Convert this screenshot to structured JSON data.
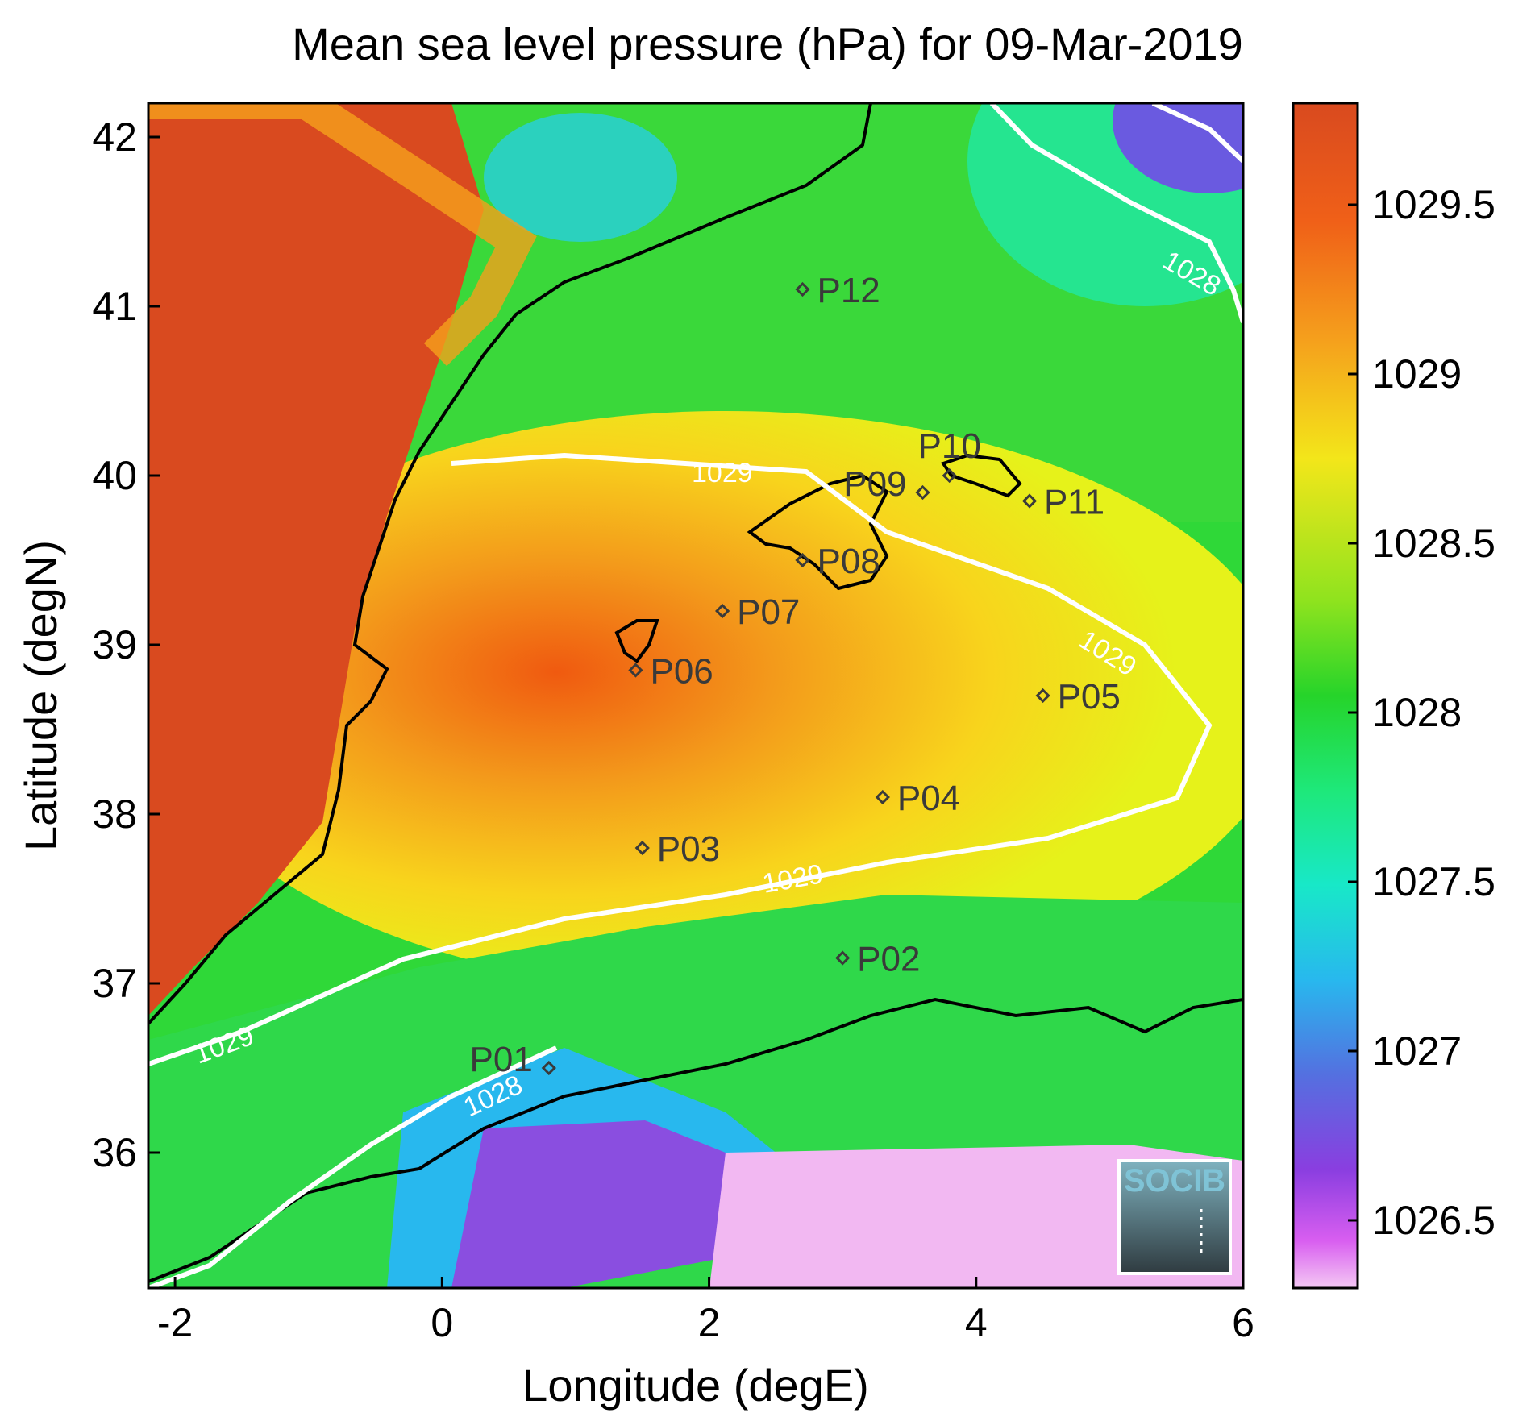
{
  "title": "Mean sea level pressure (hPa) for 09-Mar-2019",
  "axes": {
    "xlabel": "Longitude (degE)",
    "ylabel": "Latitude (degN)",
    "xticks": [
      "-2",
      "0",
      "2",
      "4",
      "6"
    ],
    "yticks": [
      "42",
      "41",
      "40",
      "39",
      "38",
      "37",
      "36"
    ],
    "xlim": [
      -2.2,
      6.0
    ],
    "ylim": [
      35.2,
      42.2
    ]
  },
  "colorbar": {
    "ticks": [
      "1029.5",
      "1029",
      "1028.5",
      "1028",
      "1027.5",
      "1027",
      "1026.5"
    ],
    "range": [
      1026.3,
      1029.8
    ]
  },
  "contour_labels": [
    "1028",
    "1029",
    "1029",
    "1029",
    "1029",
    "1028"
  ],
  "stations": [
    {
      "id": "P01",
      "lon": 0.8,
      "lat": 36.5
    },
    {
      "id": "P02",
      "lon": 3.0,
      "lat": 37.15
    },
    {
      "id": "P03",
      "lon": 1.5,
      "lat": 37.8
    },
    {
      "id": "P04",
      "lon": 3.3,
      "lat": 38.1
    },
    {
      "id": "P05",
      "lon": 4.5,
      "lat": 38.7
    },
    {
      "id": "P06",
      "lon": 1.45,
      "lat": 38.85
    },
    {
      "id": "P07",
      "lon": 2.1,
      "lat": 39.2
    },
    {
      "id": "P08",
      "lon": 2.7,
      "lat": 39.5
    },
    {
      "id": "P09",
      "lon": 3.6,
      "lat": 39.9
    },
    {
      "id": "P10",
      "lon": 3.8,
      "lat": 40.0
    },
    {
      "id": "P11",
      "lon": 4.4,
      "lat": 39.85
    },
    {
      "id": "P12",
      "lon": 2.7,
      "lat": 41.1
    }
  ],
  "logo": "SOCIB"
}
